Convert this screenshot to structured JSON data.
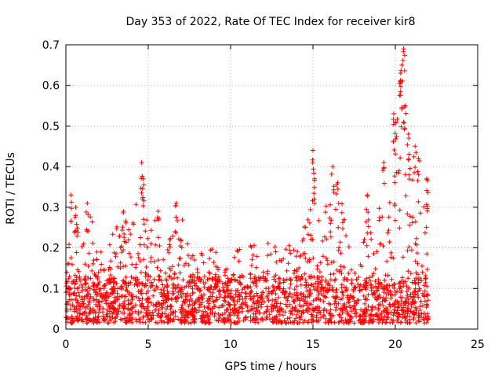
{
  "chart_data": {
    "type": "scatter",
    "title": "Day 353 of 2022, Rate Of TEC Index for receiver kir8",
    "xlabel": "GPS time / hours",
    "ylabel": "ROTI / TECUs",
    "xlim": [
      0,
      25
    ],
    "ylim": [
      0,
      0.7
    ],
    "xticks": [
      0,
      5,
      10,
      15,
      20,
      25
    ],
    "yticks": [
      0,
      0.1,
      0.2,
      0.3,
      0.4,
      0.5,
      0.6,
      0.7
    ],
    "xtick_labels": [
      "0",
      "5",
      "10",
      "15",
      "20",
      "25"
    ],
    "ytick_labels": [
      "0",
      "0.1",
      "0.2",
      "0.3",
      "0.4",
      "0.5",
      "0.6",
      "0.7"
    ],
    "grid": true,
    "marker": "+",
    "color": "#ff0000",
    "data_range_hours": [
      0,
      22
    ],
    "envelope": [
      [
        0.0,
        0.18
      ],
      [
        0.5,
        0.31
      ],
      [
        1.0,
        0.2
      ],
      [
        1.5,
        0.3
      ],
      [
        2.0,
        0.2
      ],
      [
        2.5,
        0.22
      ],
      [
        3.0,
        0.25
      ],
      [
        3.5,
        0.28
      ],
      [
        4.0,
        0.27
      ],
      [
        4.5,
        0.38
      ],
      [
        5.0,
        0.25
      ],
      [
        5.5,
        0.28
      ],
      [
        6.0,
        0.2
      ],
      [
        6.5,
        0.25
      ],
      [
        7.0,
        0.3
      ],
      [
        7.5,
        0.19
      ],
      [
        8.0,
        0.18
      ],
      [
        8.5,
        0.22
      ],
      [
        9.0,
        0.2
      ],
      [
        9.5,
        0.2
      ],
      [
        10.0,
        0.19
      ],
      [
        10.5,
        0.2
      ],
      [
        11.0,
        0.2
      ],
      [
        11.5,
        0.22
      ],
      [
        12.0,
        0.22
      ],
      [
        12.5,
        0.23
      ],
      [
        13.0,
        0.2
      ],
      [
        13.5,
        0.22
      ],
      [
        14.0,
        0.2
      ],
      [
        14.5,
        0.28
      ],
      [
        15.0,
        0.38
      ],
      [
        15.5,
        0.3
      ],
      [
        16.0,
        0.33
      ],
      [
        16.5,
        0.38
      ],
      [
        17.0,
        0.25
      ],
      [
        17.5,
        0.15
      ],
      [
        18.0,
        0.2
      ],
      [
        18.5,
        0.3
      ],
      [
        19.0,
        0.3
      ],
      [
        19.5,
        0.32
      ],
      [
        20.0,
        0.5
      ],
      [
        20.3,
        0.62
      ],
      [
        20.5,
        0.68
      ],
      [
        21.0,
        0.42
      ],
      [
        21.5,
        0.32
      ],
      [
        22.0,
        0.38
      ]
    ],
    "peaks": [
      {
        "x": 0.3,
        "y": 0.33
      },
      {
        "x": 0.6,
        "y": 0.3
      },
      {
        "x": 1.3,
        "y": 0.31
      },
      {
        "x": 3.5,
        "y": 0.29
      },
      {
        "x": 4.6,
        "y": 0.41
      },
      {
        "x": 4.7,
        "y": 0.37
      },
      {
        "x": 5.6,
        "y": 0.29
      },
      {
        "x": 6.7,
        "y": 0.31
      },
      {
        "x": 15.0,
        "y": 0.44
      },
      {
        "x": 15.1,
        "y": 0.37
      },
      {
        "x": 16.2,
        "y": 0.4
      },
      {
        "x": 16.5,
        "y": 0.36
      },
      {
        "x": 18.3,
        "y": 0.33
      },
      {
        "x": 19.3,
        "y": 0.41
      },
      {
        "x": 19.9,
        "y": 0.53
      },
      {
        "x": 20.0,
        "y": 0.51
      },
      {
        "x": 20.3,
        "y": 0.61
      },
      {
        "x": 20.4,
        "y": 0.65
      },
      {
        "x": 20.5,
        "y": 0.69
      },
      {
        "x": 20.6,
        "y": 0.55
      },
      {
        "x": 20.8,
        "y": 0.48
      },
      {
        "x": 21.2,
        "y": 0.45
      },
      {
        "x": 21.4,
        "y": 0.42
      },
      {
        "x": 21.9,
        "y": 0.37
      }
    ]
  }
}
